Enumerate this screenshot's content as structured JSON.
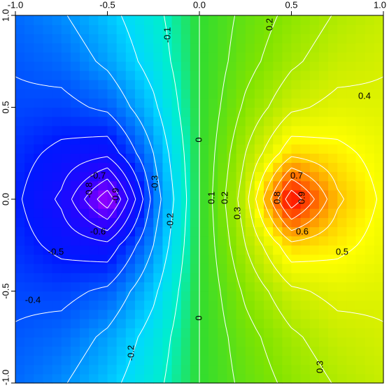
{
  "chart_data": {
    "type": "contour",
    "x": [
      -1,
      -0.75,
      -0.5,
      -0.25,
      0,
      0.25,
      0.5,
      0.75,
      1
    ],
    "y": [
      -1,
      -0.75,
      -0.5,
      -0.25,
      0,
      0.25,
      0.5,
      0.75,
      1
    ],
    "z": [
      [
        -0.36,
        -0.31,
        -0.23,
        -0.13,
        0,
        0.13,
        0.23,
        0.31,
        0.36
      ],
      [
        -0.39,
        -0.36,
        -0.28,
        -0.16,
        0,
        0.16,
        0.28,
        0.36,
        0.39
      ],
      [
        -0.42,
        -0.43,
        -0.38,
        -0.22,
        0,
        0.22,
        0.38,
        0.43,
        0.42
      ],
      [
        -0.46,
        -0.53,
        -0.57,
        -0.3,
        0,
        0.3,
        0.57,
        0.53,
        0.46
      ],
      [
        -0.48,
        -0.62,
        -0.98,
        -0.36,
        0,
        0.36,
        0.98,
        0.62,
        0.48
      ],
      [
        -0.46,
        -0.53,
        -0.57,
        -0.3,
        0,
        0.3,
        0.57,
        0.53,
        0.46
      ],
      [
        -0.42,
        -0.43,
        -0.38,
        -0.22,
        0,
        0.22,
        0.38,
        0.43,
        0.42
      ],
      [
        -0.39,
        -0.36,
        -0.28,
        -0.16,
        0,
        0.16,
        0.28,
        0.36,
        0.39
      ],
      [
        -0.36,
        -0.31,
        -0.23,
        -0.13,
        0,
        0.13,
        0.23,
        0.31,
        0.36
      ]
    ],
    "xlim": [
      -1,
      1
    ],
    "ylim": [
      -1,
      1
    ],
    "xticks": [
      {
        "value": -1,
        "label": "-1.0"
      },
      {
        "value": -0.5,
        "label": "-0.5"
      },
      {
        "value": 0,
        "label": "0.0"
      },
      {
        "value": 0.5,
        "label": "0.5"
      },
      {
        "value": 1,
        "label": "1.0"
      }
    ],
    "yticks": [
      {
        "value": -1,
        "label": "-1.0"
      },
      {
        "value": -0.5,
        "label": "-0.5"
      },
      {
        "value": 0,
        "label": "0.0"
      },
      {
        "value": 0.5,
        "label": "0.5"
      },
      {
        "value": 1,
        "label": "1.0"
      }
    ],
    "levels": [
      -0.9,
      -0.8,
      -0.7,
      -0.6,
      -0.5,
      -0.4,
      -0.3,
      -0.2,
      -0.1,
      0,
      0.1,
      0.2,
      0.3,
      0.4,
      0.5,
      0.6,
      0.7,
      0.8,
      0.9
    ],
    "contour_color": "#ffffff",
    "colorscale": [
      [
        -1,
        "#c000ff"
      ],
      [
        -0.75,
        "#3000ff"
      ],
      [
        -0.5,
        "#0018ff"
      ],
      [
        -0.35,
        "#0070ff"
      ],
      [
        -0.2,
        "#00d8ff"
      ],
      [
        -0.1,
        "#00f0c8"
      ],
      [
        0,
        "#30dc30"
      ],
      [
        0.2,
        "#80e400"
      ],
      [
        0.4,
        "#d8f000"
      ],
      [
        0.5,
        "#ffff00"
      ],
      [
        0.7,
        "#ff9000"
      ],
      [
        0.9,
        "#ff2000"
      ],
      [
        1,
        "#ff0000"
      ]
    ],
    "contour_labels": [
      -0.1,
      0.2,
      0.4,
      0,
      -0.7,
      0.7,
      -0.3,
      -0.8,
      -0.9,
      0.8,
      0.9,
      0.1,
      0.2,
      0.3,
      -0.2,
      -0.6,
      0.6,
      -0.5,
      0.5,
      -0.4,
      0,
      -0.2,
      0.3
    ]
  }
}
